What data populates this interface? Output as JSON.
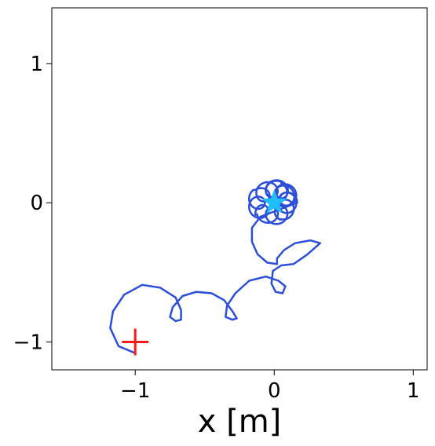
{
  "chart_data": {
    "type": "line",
    "title": "",
    "xlabel": "x [m]",
    "ylabel": "",
    "xlim": [
      -1.6,
      1.1
    ],
    "ylim": [
      -1.2,
      1.4
    ],
    "xticks": [
      {
        "value": -1,
        "label": "−1"
      },
      {
        "value": 0,
        "label": "0"
      },
      {
        "value": 1,
        "label": "1"
      }
    ],
    "yticks": [
      {
        "value": -1,
        "label": "−1"
      },
      {
        "value": 0,
        "label": "0"
      },
      {
        "value": 1,
        "label": "1"
      }
    ],
    "grid": false,
    "legend": "none",
    "series": [
      {
        "color": "#2d4ed8",
        "line_width": 2.5,
        "points": [
          [
            -1.0,
            -1.08
          ],
          [
            -1.12,
            -1.03
          ],
          [
            -1.18,
            -0.9
          ],
          [
            -1.16,
            -0.78
          ],
          [
            -1.08,
            -0.66
          ],
          [
            -0.95,
            -0.59
          ],
          [
            -0.82,
            -0.61
          ],
          [
            -0.71,
            -0.68
          ],
          [
            -0.67,
            -0.77
          ],
          [
            -0.67,
            -0.84
          ],
          [
            -0.71,
            -0.85
          ],
          [
            -0.75,
            -0.82
          ],
          [
            -0.73,
            -0.75
          ],
          [
            -0.66,
            -0.67
          ],
          [
            -0.56,
            -0.64
          ],
          [
            -0.45,
            -0.65
          ],
          [
            -0.36,
            -0.7
          ],
          [
            -0.3,
            -0.78
          ],
          [
            -0.27,
            -0.83
          ],
          [
            -0.3,
            -0.84
          ],
          [
            -0.35,
            -0.82
          ],
          [
            -0.34,
            -0.74
          ],
          [
            -0.28,
            -0.65
          ],
          [
            -0.18,
            -0.56
          ],
          [
            -0.06,
            -0.53
          ],
          [
            0.03,
            -0.56
          ],
          [
            0.08,
            -0.6
          ],
          [
            0.06,
            -0.65
          ],
          [
            0.01,
            -0.64
          ],
          [
            -0.02,
            -0.58
          ],
          [
            -0.01,
            -0.49
          ],
          [
            0.05,
            -0.45
          ],
          [
            0.14,
            -0.44
          ],
          [
            0.24,
            -0.37
          ],
          [
            0.33,
            -0.29
          ],
          [
            0.26,
            -0.27
          ],
          [
            0.15,
            -0.29
          ],
          [
            0.07,
            -0.34
          ],
          [
            0.02,
            -0.4
          ],
          [
            0.02,
            -0.44
          ],
          [
            -0.05,
            -0.43
          ],
          [
            -0.12,
            -0.37
          ],
          [
            -0.16,
            -0.28
          ],
          [
            -0.16,
            -0.18
          ],
          [
            -0.1,
            -0.1
          ]
        ],
        "orbit": {
          "center": [
            0,
            0
          ],
          "loop_radius": 0.06,
          "orbit_radius": [
            0.1,
            0.12,
            0.14,
            0.11,
            0.09,
            0.13
          ],
          "loops": 13
        }
      }
    ],
    "markers": [
      {
        "kind": "start",
        "shape": "plus",
        "x": -1.0,
        "y": -1.0,
        "color": "#ff1a1a"
      },
      {
        "kind": "goal",
        "shape": "star",
        "x": 0.0,
        "y": 0.0,
        "color": "#1fbfff"
      }
    ]
  }
}
